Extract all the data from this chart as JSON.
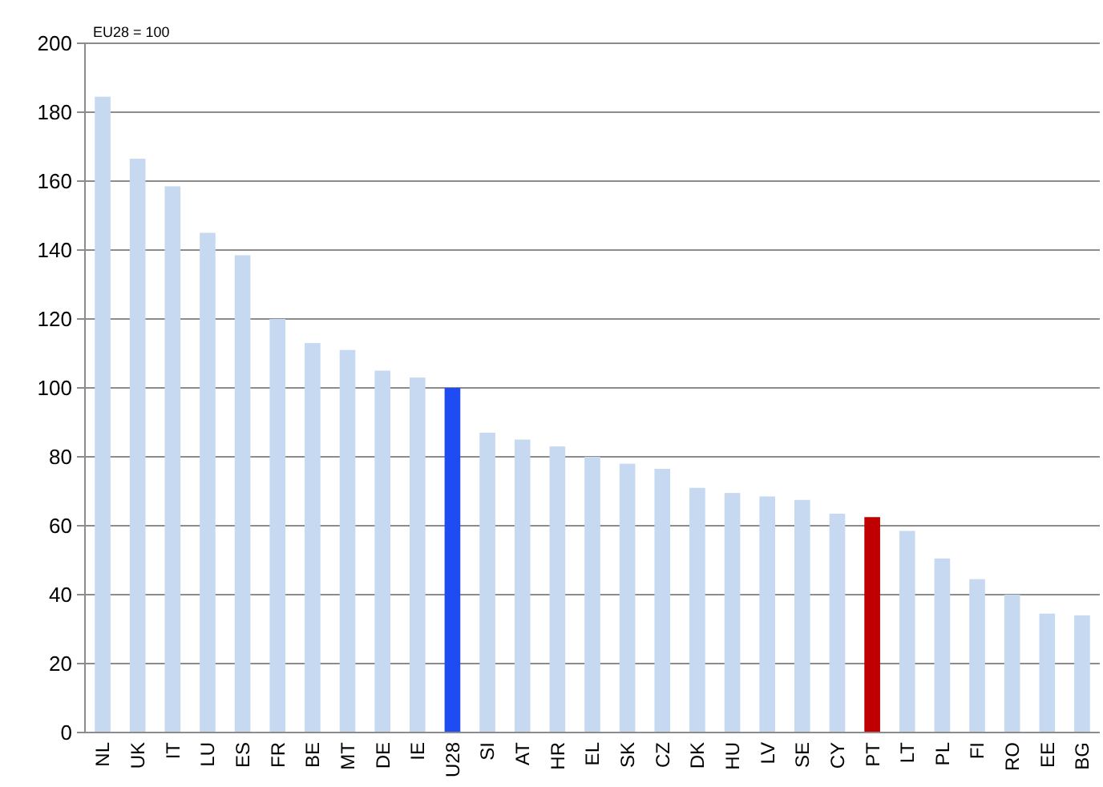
{
  "chart_data": {
    "type": "bar",
    "annotations": [
      "EU28 = 100"
    ],
    "categories": [
      "NL",
      "UK",
      "IT",
      "LU",
      "ES",
      "FR",
      "BE",
      "MT",
      "DE",
      "IE",
      "U28",
      "SI",
      "AT",
      "HR",
      "EL",
      "SK",
      "CZ",
      "DK",
      "HU",
      "LV",
      "SE",
      "CY",
      "PT",
      "LT",
      "PL",
      "FI",
      "RO",
      "EE",
      "BG"
    ],
    "values": [
      184.5,
      166.5,
      158.5,
      145,
      138.5,
      120,
      113,
      111,
      105,
      103,
      100,
      87,
      85,
      83,
      80,
      78,
      76.5,
      71,
      69.5,
      68.5,
      67.5,
      63.5,
      62.5,
      58.5,
      50.5,
      44.5,
      40,
      34.5,
      34
    ],
    "colors": [
      "#c6d9f0",
      "#c6d9f0",
      "#c6d9f0",
      "#c6d9f0",
      "#c6d9f0",
      "#c6d9f0",
      "#c6d9f0",
      "#c6d9f0",
      "#c6d9f0",
      "#c6d9f0",
      "#1f4cf2",
      "#c6d9f0",
      "#c6d9f0",
      "#c6d9f0",
      "#c6d9f0",
      "#c6d9f0",
      "#c6d9f0",
      "#c6d9f0",
      "#c6d9f0",
      "#c6d9f0",
      "#c6d9f0",
      "#c6d9f0",
      "#c00000",
      "#c6d9f0",
      "#c6d9f0",
      "#c6d9f0",
      "#c6d9f0",
      "#c6d9f0",
      "#c6d9f0"
    ],
    "ylim": [
      0,
      200
    ],
    "yticks": [
      0,
      20,
      40,
      60,
      80,
      100,
      120,
      140,
      160,
      180,
      200
    ],
    "grid": "y"
  }
}
